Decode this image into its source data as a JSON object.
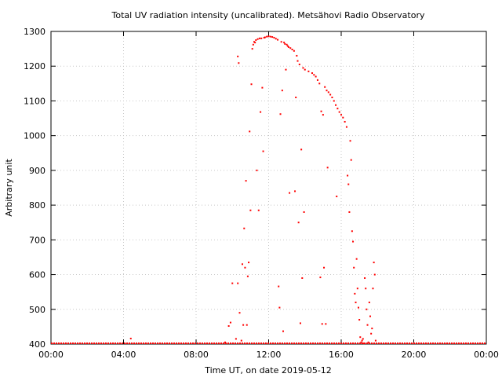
{
  "chart_data": {
    "type": "scatter",
    "title": "Total UV radiation intensity (uncalibrated). Metsähovi Radio Observatory",
    "xlabel": "Time UT, on date 2019-05-12",
    "ylabel": "Arbitrary unit",
    "x_unit": "hours UT",
    "xlim": [
      0,
      24
    ],
    "ylim": [
      400,
      1300
    ],
    "x_ticks": [
      {
        "value": 0,
        "label": "00:00"
      },
      {
        "value": 4,
        "label": "04:00"
      },
      {
        "value": 8,
        "label": "08:00"
      },
      {
        "value": 12,
        "label": "12:00"
      },
      {
        "value": 16,
        "label": "16:00"
      },
      {
        "value": 20,
        "label": "20:00"
      },
      {
        "value": 24,
        "label": "00:00"
      }
    ],
    "y_ticks": [
      400,
      500,
      600,
      700,
      800,
      900,
      1000,
      1100,
      1200,
      1300
    ],
    "grid": true,
    "marker_color": "#ff0000",
    "series": [
      {
        "name": "",
        "points": [
          [
            4.4,
            416
          ],
          [
            9.6,
            405
          ],
          [
            9.8,
            452
          ],
          [
            9.9,
            462
          ],
          [
            10.0,
            575
          ],
          [
            10.2,
            415
          ],
          [
            10.3,
            575
          ],
          [
            10.3,
            1228
          ],
          [
            10.35,
            1209
          ],
          [
            10.4,
            490
          ],
          [
            10.5,
            410
          ],
          [
            10.55,
            630
          ],
          [
            10.6,
            455
          ],
          [
            10.65,
            733
          ],
          [
            10.7,
            620
          ],
          [
            10.75,
            870
          ],
          [
            10.8,
            455
          ],
          [
            10.85,
            595
          ],
          [
            10.9,
            635
          ],
          [
            10.95,
            1012
          ],
          [
            11.0,
            785
          ],
          [
            11.05,
            1148
          ],
          [
            11.1,
            1250
          ],
          [
            11.15,
            1262
          ],
          [
            11.2,
            1270
          ],
          [
            11.25,
            1268
          ],
          [
            11.3,
            1275
          ],
          [
            11.35,
            900
          ],
          [
            11.4,
            1278
          ],
          [
            11.45,
            785
          ],
          [
            11.5,
            1280
          ],
          [
            11.55,
            1068
          ],
          [
            11.6,
            1280
          ],
          [
            11.65,
            1138
          ],
          [
            11.7,
            955
          ],
          [
            11.75,
            1282
          ],
          [
            11.8,
            1283
          ],
          [
            11.9,
            1285
          ],
          [
            12.0,
            1286
          ],
          [
            12.1,
            1285
          ],
          [
            12.2,
            1284
          ],
          [
            12.3,
            1282
          ],
          [
            12.4,
            1279
          ],
          [
            12.5,
            1276
          ],
          [
            12.55,
            566
          ],
          [
            12.6,
            505
          ],
          [
            12.65,
            1062
          ],
          [
            12.7,
            1270
          ],
          [
            12.75,
            1130
          ],
          [
            12.8,
            437
          ],
          [
            12.85,
            1268
          ],
          [
            12.9,
            1264
          ],
          [
            12.95,
            1190
          ],
          [
            13.0,
            1262
          ],
          [
            13.05,
            1258
          ],
          [
            13.1,
            1255
          ],
          [
            13.15,
            835
          ],
          [
            13.2,
            1252
          ],
          [
            13.3,
            1248
          ],
          [
            13.4,
            1244
          ],
          [
            13.45,
            840
          ],
          [
            13.5,
            1110
          ],
          [
            13.55,
            1230
          ],
          [
            13.6,
            1215
          ],
          [
            13.65,
            750
          ],
          [
            13.7,
            1205
          ],
          [
            13.75,
            460
          ],
          [
            13.8,
            960
          ],
          [
            13.85,
            590
          ],
          [
            13.9,
            1195
          ],
          [
            13.95,
            780
          ],
          [
            14.0,
            1190
          ],
          [
            14.2,
            1185
          ],
          [
            14.4,
            1180
          ],
          [
            14.5,
            1175
          ],
          [
            14.6,
            1170
          ],
          [
            14.7,
            1160
          ],
          [
            14.8,
            1150
          ],
          [
            14.85,
            592
          ],
          [
            14.9,
            1070
          ],
          [
            14.95,
            458
          ],
          [
            15.0,
            1060
          ],
          [
            15.05,
            620
          ],
          [
            15.1,
            1140
          ],
          [
            15.15,
            458
          ],
          [
            15.2,
            1130
          ],
          [
            15.25,
            908
          ],
          [
            15.3,
            1125
          ],
          [
            15.4,
            1118
          ],
          [
            15.5,
            1110
          ],
          [
            15.6,
            1100
          ],
          [
            15.7,
            1088
          ],
          [
            15.75,
            825
          ],
          [
            15.8,
            1078
          ],
          [
            15.9,
            1068
          ],
          [
            16.0,
            1060
          ],
          [
            16.1,
            1052
          ],
          [
            16.2,
            1040
          ],
          [
            16.3,
            1025
          ],
          [
            16.35,
            885
          ],
          [
            16.4,
            860
          ],
          [
            16.45,
            780
          ],
          [
            16.5,
            985
          ],
          [
            16.55,
            930
          ],
          [
            16.6,
            725
          ],
          [
            16.65,
            695
          ],
          [
            16.7,
            620
          ],
          [
            16.75,
            545
          ],
          [
            16.8,
            520
          ],
          [
            16.85,
            645
          ],
          [
            16.9,
            560
          ],
          [
            16.95,
            505
          ],
          [
            17.0,
            470
          ],
          [
            17.05,
            420
          ],
          [
            17.1,
            405
          ],
          [
            17.15,
            410
          ],
          [
            17.2,
            415
          ],
          [
            17.25,
            402
          ],
          [
            17.3,
            590
          ],
          [
            17.35,
            560
          ],
          [
            17.4,
            500
          ],
          [
            17.45,
            455
          ],
          [
            17.5,
            405
          ],
          [
            17.55,
            520
          ],
          [
            17.6,
            480
          ],
          [
            17.65,
            430
          ],
          [
            17.7,
            445
          ],
          [
            17.75,
            560
          ],
          [
            17.8,
            635
          ],
          [
            17.85,
            600
          ],
          [
            17.9,
            410
          ]
        ]
      }
    ]
  }
}
